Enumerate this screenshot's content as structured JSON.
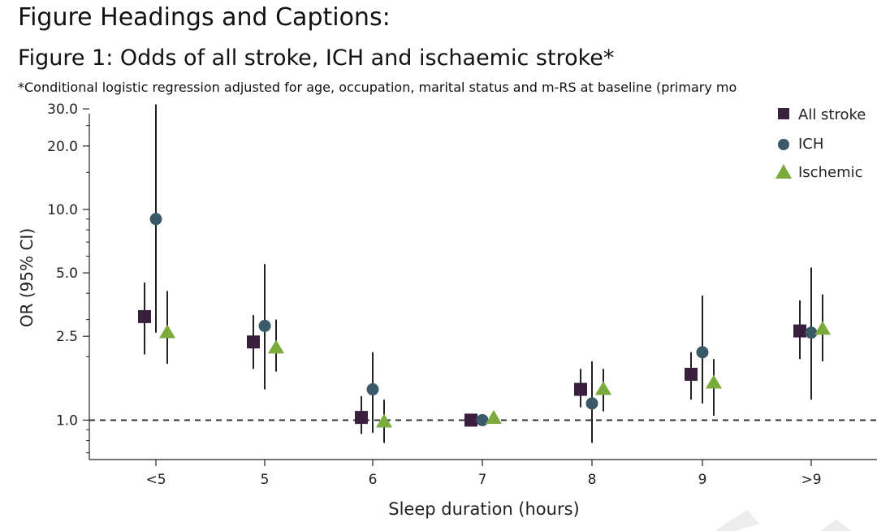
{
  "page": {
    "heading": "Figure Headings and Captions:",
    "figure_title": "Figure 1: Odds of all stroke, ICH and ischaemic stroke*",
    "footnote": "*Conditional logistic regression adjusted for age, occupation, marital status and m-RS at baseline (primary mo"
  },
  "colors": {
    "all_stroke": "#3b1f3e",
    "ich": "#3a5a6a",
    "ischemic": "#7aab3c",
    "ci_line": "#222222",
    "axis": "#222222"
  },
  "chart_data": {
    "type": "scatter",
    "title": "Figure 1: Odds of all stroke, ICH and ischaemic stroke*",
    "xlabel": "Sleep duration (hours)",
    "ylabel": "OR (95% CI)",
    "yscale": "log",
    "ylim": [
      0.65,
      34
    ],
    "reference_line": 1.0,
    "categories": [
      "<5",
      "5",
      "6",
      "7",
      "8",
      "9",
      ">9"
    ],
    "yticks": [
      1.0,
      2.5,
      5.0,
      10.0,
      20.0,
      30.0
    ],
    "ytick_labels": [
      "1.0",
      "2.5",
      "5.0",
      "10.0",
      "20.0",
      "30.0"
    ],
    "legend": [
      "All stroke",
      "ICH",
      "Ischemic"
    ],
    "legend_position": "top-right",
    "series": [
      {
        "name": "All stroke",
        "marker": "square",
        "color_key": "all_stroke",
        "values": [
          3.1,
          2.35,
          1.03,
          1.0,
          1.4,
          1.65,
          2.65
        ],
        "lower": [
          2.05,
          1.75,
          0.86,
          1.0,
          1.15,
          1.25,
          1.95
        ],
        "upper": [
          4.5,
          3.15,
          1.3,
          1.0,
          1.75,
          2.1,
          3.7
        ]
      },
      {
        "name": "ICH",
        "marker": "circle",
        "color_key": "ich",
        "values": [
          9.0,
          2.8,
          1.4,
          1.0,
          1.2,
          2.1,
          2.6
        ],
        "lower": [
          2.6,
          1.4,
          0.87,
          1.0,
          0.78,
          1.2,
          1.25
        ],
        "upper": [
          31.5,
          5.5,
          2.1,
          1.0,
          1.9,
          3.9,
          5.3
        ]
      },
      {
        "name": "Ischemic",
        "marker": "triangle",
        "color_key": "ischemic",
        "values": [
          2.6,
          2.2,
          0.98,
          1.02,
          1.4,
          1.5,
          2.7
        ],
        "lower": [
          1.85,
          1.7,
          0.78,
          1.0,
          1.1,
          1.05,
          1.9
        ],
        "upper": [
          4.1,
          3.0,
          1.25,
          1.04,
          1.75,
          1.95,
          3.95
        ]
      }
    ]
  }
}
